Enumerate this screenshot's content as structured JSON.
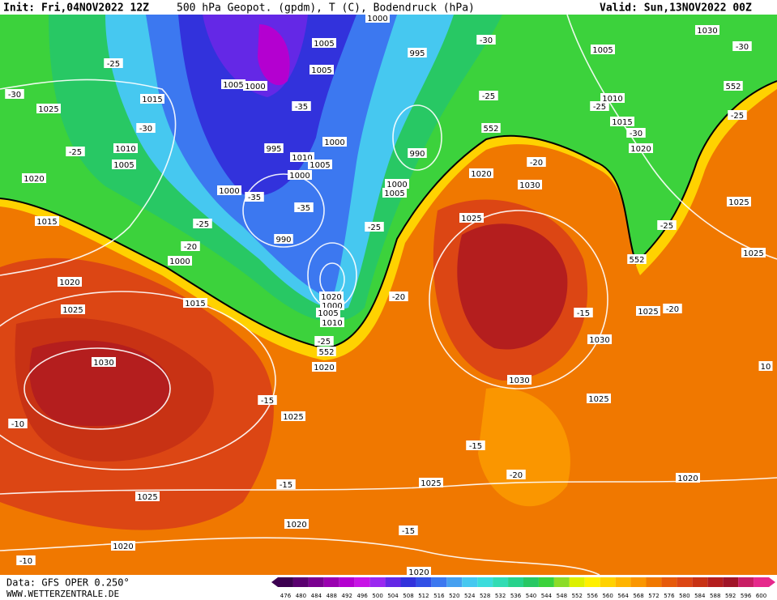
{
  "header": {
    "init": "Init: Fri,04NOV2022 12Z",
    "title": "500 hPa Geopot. (gpdm), T (C), Bodendruck (hPa)",
    "valid": "Valid: Sun,13NOV2022 00Z"
  },
  "footer": {
    "source": "Data: GFS OPER 0.250°",
    "site": "WWW.WETTERZENTRALE.DE"
  },
  "scale": {
    "levels": [
      476,
      480,
      484,
      488,
      492,
      496,
      500,
      504,
      508,
      512,
      516,
      520,
      524,
      528,
      532,
      536,
      540,
      544,
      548,
      552,
      556,
      560,
      564,
      568,
      572,
      576,
      580,
      584,
      588,
      592,
      596,
      600
    ],
    "colors": [
      "#3c0050",
      "#5a0070",
      "#7a0090",
      "#9a00b0",
      "#b400d0",
      "#c814e6",
      "#9a28f0",
      "#6428e6",
      "#3232dc",
      "#3250e6",
      "#3c78f0",
      "#46a0f0",
      "#46c8f0",
      "#3cdcdc",
      "#32dcb4",
      "#28d28c",
      "#28c864",
      "#3cd23c",
      "#8cdc28",
      "#dcf000",
      "#fff000",
      "#ffd200",
      "#ffb400",
      "#fa9600",
      "#f07800",
      "#e65a0a",
      "#dc4614",
      "#c83214",
      "#b41e1e",
      "#a01428",
      "#c81e64",
      "#e6288c"
    ]
  },
  "map": {
    "labels": [
      "-30",
      "1025",
      "-25",
      "1015",
      "-30",
      "-25",
      "1010",
      "1005",
      "1020",
      "1015",
      "-20",
      "-25",
      "1000",
      "1005",
      "1000",
      "1005",
      "1005",
      "-35",
      "995",
      "1010",
      "1000",
      "1005",
      "1000",
      "1000",
      "-35",
      "-35",
      "990",
      "995",
      "990",
      "1000",
      "1005",
      "-25",
      "1020",
      "1000",
      "1005",
      "1010",
      "-25",
      "552",
      "1020",
      "-20",
      "1020",
      "1025",
      "1015",
      "1030",
      "-15",
      "1025",
      "-10",
      "1025",
      "-15",
      "1020",
      "1020",
      "-10",
      "1025",
      "-15",
      "1020",
      "-15",
      "-20",
      "1025",
      "1030",
      "1030",
      "-15",
      "1025",
      "-20",
      "1020",
      "1025",
      "1020",
      "1030",
      "-20",
      "552",
      "-25",
      "-30",
      "1005",
      "1030",
      "-30",
      "552",
      "-25",
      "1010",
      "1015",
      "-30",
      "1020",
      "-25",
      "1025",
      "-25",
      "552",
      "1025",
      "10",
      "1000"
    ]
  }
}
